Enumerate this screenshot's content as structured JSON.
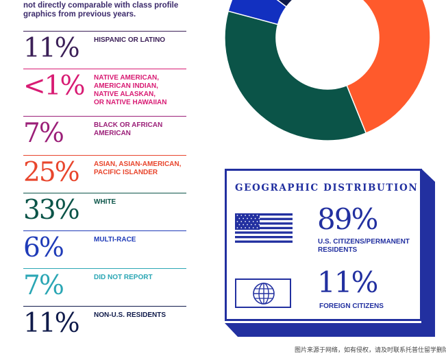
{
  "intro_text": "not directly comparable with class profile graphics from previous years.",
  "ethnicity": [
    {
      "percent": "11%",
      "label": "HISPANIC OR LATINO",
      "color": "#3b1f57"
    },
    {
      "percent": "<1%",
      "label": "NATIVE AMERICAN,\nAMERICAN INDIAN,\nNATIVE ALASKAN,\nOR NATIVE HAWAIIAN",
      "color": "#d81b73"
    },
    {
      "percent": "7%",
      "label": "BLACK OR AFRICAN\nAMERICAN",
      "color": "#9b1f78"
    },
    {
      "percent": "25%",
      "label": "ASIAN, ASIAN-AMERICAN,\nPACIFIC ISLANDER",
      "color": "#e8452c"
    },
    {
      "percent": "33%",
      "label": "WHITE",
      "color": "#0b5448"
    },
    {
      "percent": "6%",
      "label": "MULTI-RACE",
      "color": "#1f3bb8"
    },
    {
      "percent": "7%",
      "label": "DID NOT REPORT",
      "color": "#2aa6b4"
    },
    {
      "percent": "11%",
      "label": "NON-U.S. RESIDENTS",
      "color": "#0f1a4a"
    }
  ],
  "donut_colors": {
    "white": "#0b5448",
    "asian": "#ff5a2c",
    "multi_race": "#1230c0",
    "non_us": "#0f1a4a",
    "black": "#a0207e"
  },
  "geographic": {
    "title": "GEOGRAPHIC DISTRIBUTION",
    "us_percent": "89%",
    "us_label": "U.S. CITIZENS/PERMANENT\nRESIDENTS",
    "foreign_percent": "11%",
    "foreign_label": "FOREIGN CITIZENS",
    "flag_icon": "us-flag-icon",
    "globe_icon": "globe-icon",
    "color": "#2230a0"
  },
  "footer_note": "图片来源于网络，如有侵权，请及时联系托普仕留学删除"
}
